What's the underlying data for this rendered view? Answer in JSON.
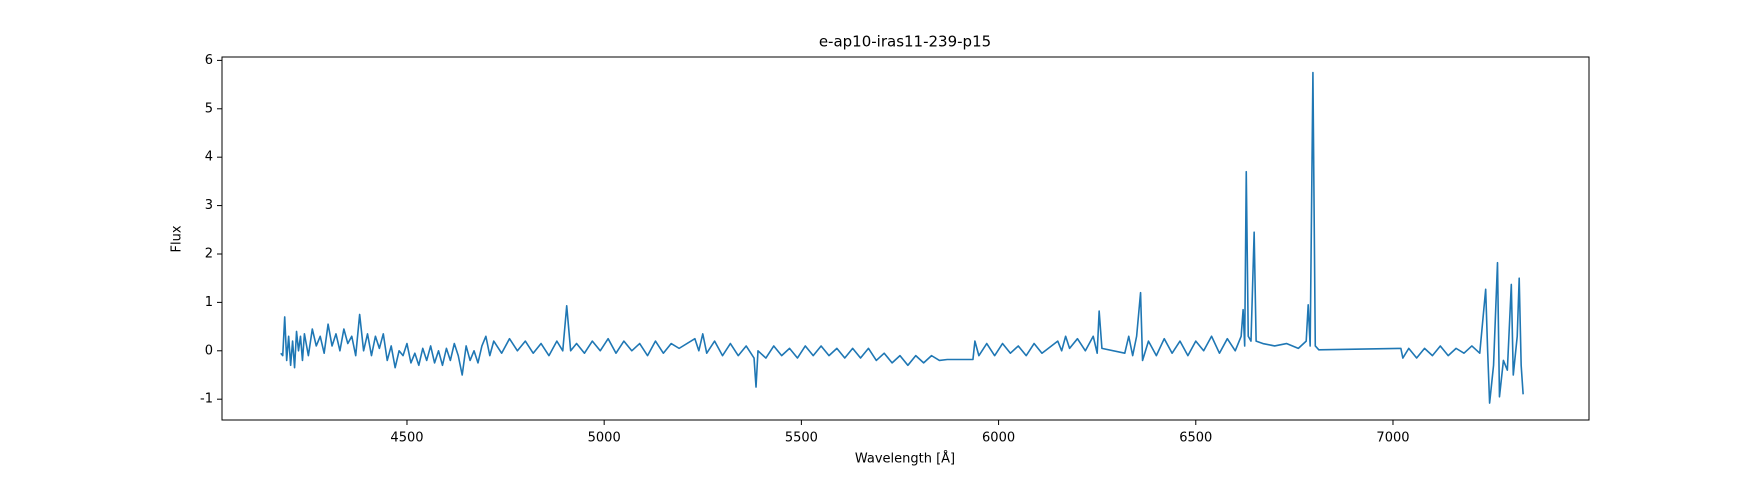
{
  "chart_data": {
    "type": "line",
    "title": "e-ap10-iras11-239-p15",
    "xlabel": "Wavelength [Å]",
    "ylabel": "Flux",
    "xlim": [
      4031,
      7497
    ],
    "ylim": [
      -1.43,
      6.07
    ],
    "xticks": [
      4500,
      5000,
      5500,
      6000,
      6500,
      7000
    ],
    "yticks": [
      -1,
      0,
      1,
      2,
      3,
      4,
      5,
      6
    ],
    "x": [
      4180,
      4185,
      4190,
      4195,
      4200,
      4205,
      4210,
      4215,
      4220,
      4225,
      4230,
      4235,
      4240,
      4250,
      4260,
      4270,
      4280,
      4290,
      4300,
      4310,
      4320,
      4330,
      4340,
      4350,
      4360,
      4370,
      4380,
      4390,
      4400,
      4410,
      4420,
      4430,
      4440,
      4450,
      4460,
      4470,
      4480,
      4490,
      4500,
      4510,
      4520,
      4530,
      4540,
      4550,
      4560,
      4570,
      4580,
      4590,
      4600,
      4610,
      4620,
      4630,
      4640,
      4650,
      4660,
      4670,
      4680,
      4690,
      4700,
      4710,
      4720,
      4740,
      4760,
      4780,
      4800,
      4820,
      4840,
      4860,
      4880,
      4895,
      4905,
      4915,
      4930,
      4950,
      4970,
      4990,
      5010,
      5030,
      5050,
      5070,
      5090,
      5110,
      5130,
      5150,
      5170,
      5190,
      5230,
      5240,
      5250,
      5260,
      5280,
      5300,
      5320,
      5340,
      5360,
      5380,
      5385,
      5390,
      5410,
      5430,
      5450,
      5470,
      5490,
      5510,
      5530,
      5550,
      5570,
      5590,
      5610,
      5630,
      5650,
      5670,
      5690,
      5710,
      5730,
      5750,
      5770,
      5790,
      5810,
      5830,
      5850,
      5870,
      5935,
      5940,
      5950,
      5970,
      5990,
      6010,
      6030,
      6050,
      6070,
      6090,
      6110,
      6150,
      6160,
      6170,
      6180,
      6200,
      6220,
      6240,
      6250,
      6255,
      6262,
      6320,
      6330,
      6340,
      6350,
      6360,
      6365,
      6380,
      6400,
      6420,
      6440,
      6460,
      6480,
      6500,
      6520,
      6540,
      6560,
      6580,
      6600,
      6615,
      6620,
      6624,
      6628,
      6633,
      6640,
      6648,
      6653,
      6670,
      6700,
      6730,
      6760,
      6780,
      6785,
      6790,
      6797,
      6803,
      6812,
      7020,
      7025,
      7040,
      7060,
      7080,
      7100,
      7120,
      7140,
      7160,
      7180,
      7200,
      7220,
      7235,
      7240,
      7245,
      7255,
      7265,
      7270,
      7280,
      7290,
      7300,
      7305,
      7315,
      7320,
      7325,
      7330
    ],
    "series": [
      {
        "color": "#1f77b4",
        "values": [
          -0.05,
          -0.1,
          0.7,
          -0.2,
          0.3,
          -0.3,
          0.2,
          -0.35,
          0.4,
          0.0,
          0.3,
          -0.2,
          0.35,
          -0.1,
          0.45,
          0.1,
          0.3,
          -0.05,
          0.55,
          0.1,
          0.35,
          0.0,
          0.45,
          0.15,
          0.3,
          -0.1,
          0.75,
          0.0,
          0.35,
          -0.1,
          0.3,
          0.05,
          0.35,
          -0.2,
          0.1,
          -0.35,
          0.0,
          -0.1,
          0.15,
          -0.25,
          -0.05,
          -0.3,
          0.05,
          -0.2,
          0.1,
          -0.25,
          0.0,
          -0.3,
          0.05,
          -0.2,
          0.15,
          -0.1,
          -0.5,
          0.1,
          -0.2,
          0.0,
          -0.25,
          0.1,
          0.3,
          -0.1,
          0.2,
          -0.05,
          0.25,
          0.0,
          0.2,
          -0.05,
          0.15,
          -0.1,
          0.2,
          0.0,
          0.93,
          0.0,
          0.15,
          -0.05,
          0.2,
          0.0,
          0.25,
          -0.05,
          0.2,
          0.0,
          0.15,
          -0.1,
          0.2,
          -0.05,
          0.15,
          0.05,
          0.25,
          0.0,
          0.35,
          -0.05,
          0.2,
          -0.1,
          0.15,
          -0.1,
          0.1,
          -0.15,
          -0.75,
          0.0,
          -0.15,
          0.1,
          -0.1,
          0.05,
          -0.15,
          0.1,
          -0.1,
          0.1,
          -0.1,
          0.05,
          -0.15,
          0.05,
          -0.15,
          0.05,
          -0.2,
          -0.05,
          -0.25,
          -0.1,
          -0.3,
          -0.1,
          -0.25,
          -0.1,
          -0.2,
          -0.18,
          -0.18,
          0.2,
          -0.1,
          0.15,
          -0.1,
          0.15,
          -0.05,
          0.1,
          -0.1,
          0.15,
          -0.05,
          0.2,
          0.0,
          0.3,
          0.05,
          0.25,
          0.0,
          0.3,
          -0.05,
          0.82,
          0.05,
          -0.05,
          0.3,
          -0.1,
          0.3,
          1.2,
          -0.2,
          0.2,
          -0.1,
          0.25,
          -0.05,
          0.2,
          -0.1,
          0.2,
          0.0,
          0.3,
          -0.05,
          0.25,
          0.0,
          0.3,
          0.85,
          0.1,
          3.7,
          0.3,
          0.2,
          2.45,
          0.2,
          0.15,
          0.1,
          0.15,
          0.05,
          0.2,
          0.95,
          0.1,
          5.75,
          0.1,
          0.02,
          0.05,
          -0.15,
          0.05,
          -0.15,
          0.05,
          -0.1,
          0.1,
          -0.1,
          0.05,
          -0.05,
          0.1,
          -0.05,
          1.27,
          0.0,
          -1.08,
          -0.3,
          1.82,
          -0.95,
          -0.2,
          -0.4,
          1.37,
          -0.5,
          0.3,
          1.5,
          -0.3,
          -0.9
        ]
      }
    ]
  }
}
